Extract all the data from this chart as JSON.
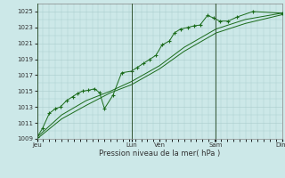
{
  "background_color": "#cce8e8",
  "grid_color": "#aacccc",
  "line_color": "#1a6b1a",
  "marker_color": "#1a6b1a",
  "xlabel": "Pression niveau de la mer( hPa )",
  "ylim": [
    1009,
    1026
  ],
  "yticks": [
    1009,
    1011,
    1013,
    1015,
    1017,
    1019,
    1021,
    1023,
    1025
  ],
  "day_labels": [
    "Jeu",
    "Lun",
    "Ven",
    "Sam",
    "Dim"
  ],
  "day_positions": [
    0.0,
    0.385,
    0.5,
    0.73,
    1.0
  ],
  "vline_positions": [
    0.0,
    0.385,
    0.73,
    1.0
  ],
  "line1_x": [
    0.0,
    0.022,
    0.05,
    0.075,
    0.095,
    0.12,
    0.145,
    0.165,
    0.185,
    0.21,
    0.235,
    0.255,
    0.275,
    0.31,
    0.345,
    0.385,
    0.41,
    0.435,
    0.46,
    0.485,
    0.51,
    0.54,
    0.56,
    0.585,
    0.615,
    0.64,
    0.665,
    0.695,
    0.72,
    0.745,
    0.78,
    0.815,
    0.88,
    1.0
  ],
  "line1_y": [
    1009.2,
    1010.3,
    1012.2,
    1012.8,
    1013.0,
    1013.8,
    1014.3,
    1014.7,
    1015.0,
    1015.1,
    1015.3,
    1014.8,
    1012.8,
    1014.5,
    1017.3,
    1017.5,
    1018.0,
    1018.5,
    1019.0,
    1019.5,
    1020.8,
    1021.3,
    1022.3,
    1022.8,
    1023.0,
    1023.2,
    1023.3,
    1024.5,
    1024.2,
    1023.8,
    1023.8,
    1024.3,
    1025.0,
    1024.8
  ],
  "line2_x": [
    0.0,
    0.1,
    0.2,
    0.3,
    0.385,
    0.5,
    0.6,
    0.73,
    0.85,
    1.0
  ],
  "line2_y": [
    1009.2,
    1012.0,
    1013.8,
    1015.0,
    1016.2,
    1018.2,
    1020.5,
    1022.8,
    1024.0,
    1024.8
  ],
  "line3_x": [
    0.0,
    0.1,
    0.2,
    0.3,
    0.385,
    0.5,
    0.6,
    0.73,
    0.85,
    1.0
  ],
  "line3_y": [
    1009.0,
    1011.5,
    1013.2,
    1014.8,
    1015.8,
    1017.8,
    1020.0,
    1022.3,
    1023.5,
    1024.6
  ]
}
